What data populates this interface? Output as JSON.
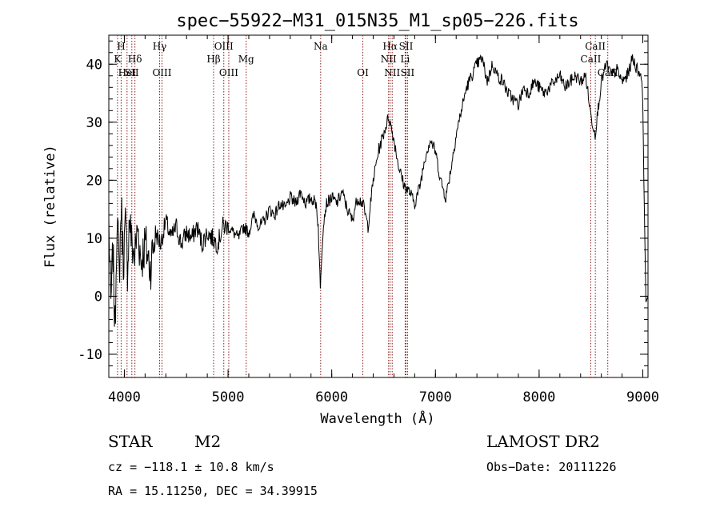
{
  "chart_data": {
    "type": "line",
    "title": "spec−55922−M31_015N35_M1_sp05−226.fits",
    "xlabel": "Wavelength (Å)",
    "ylabel": "Flux (relative)",
    "xlim": [
      3850,
      9050
    ],
    "ylim": [
      -14,
      45
    ],
    "xticks": [
      4000,
      5000,
      6000,
      7000,
      8000,
      9000
    ],
    "yticks": [
      -10,
      0,
      10,
      20,
      30,
      40
    ],
    "series_color": "#000000",
    "line_color": "#8b1a1a",
    "x": [
      3850,
      3870,
      3890,
      3910,
      3930,
      3950,
      3970,
      3990,
      4010,
      4030,
      4050,
      4070,
      4100,
      4130,
      4160,
      4200,
      4250,
      4300,
      4350,
      4400,
      4450,
      4500,
      4550,
      4600,
      4650,
      4700,
      4750,
      4800,
      4850,
      4900,
      4950,
      5000,
      5050,
      5100,
      5150,
      5200,
      5250,
      5300,
      5350,
      5400,
      5450,
      5500,
      5550,
      5600,
      5650,
      5700,
      5750,
      5800,
      5850,
      5870,
      5890,
      5900,
      5920,
      5950,
      6000,
      6050,
      6100,
      6150,
      6200,
      6220,
      6250,
      6300,
      6350,
      6400,
      6450,
      6500,
      6550,
      6600,
      6650,
      6700,
      6750,
      6800,
      6850,
      6900,
      6950,
      7000,
      7050,
      7100,
      7150,
      7200,
      7250,
      7300,
      7350,
      7400,
      7450,
      7500,
      7550,
      7600,
      7650,
      7700,
      7750,
      7800,
      7850,
      7900,
      7950,
      8000,
      8050,
      8100,
      8150,
      8200,
      8250,
      8300,
      8350,
      8400,
      8450,
      8500,
      8540,
      8600,
      8650,
      8700,
      8750,
      8800,
      8850,
      8900,
      8950,
      8990,
      9000,
      9010,
      9030,
      9050
    ],
    "y": [
      13,
      -2,
      8,
      -6,
      15,
      3,
      16,
      6,
      12,
      5,
      14,
      9,
      7,
      12,
      6,
      9,
      5,
      11,
      9,
      13,
      10,
      12,
      9,
      11,
      10,
      12,
      9,
      11,
      10,
      9,
      12,
      12,
      11,
      10,
      12,
      11,
      14,
      12,
      13,
      15,
      14,
      16,
      15,
      17,
      16,
      18,
      16,
      17,
      16,
      12,
      1,
      6,
      13,
      16,
      17,
      16,
      18,
      15,
      13,
      15,
      17,
      16,
      12,
      20,
      25,
      28,
      31,
      27,
      22,
      19,
      18,
      16,
      19,
      24,
      27,
      25,
      20,
      17,
      22,
      28,
      32,
      36,
      38,
      40,
      41,
      37,
      40,
      38,
      37,
      35,
      34,
      33,
      36,
      35,
      37,
      36,
      35,
      36,
      37,
      38,
      36,
      37,
      38,
      37,
      38,
      31,
      28,
      37,
      40,
      38,
      39,
      37,
      38,
      41,
      39,
      38,
      33,
      20,
      -1,
      0
    ],
    "lines": [
      {
        "name": "K",
        "x": 3934,
        "row": 1
      },
      {
        "name": "H",
        "x": 3969,
        "row": 0
      },
      {
        "name": "HeI",
        "x": 4026,
        "row": 2
      },
      {
        "name": "SII",
        "x": 4072,
        "row": 2
      },
      {
        "name": "Hδ",
        "x": 4102,
        "row": 1
      },
      {
        "name": "Hγ",
        "x": 4340,
        "row": 0
      },
      {
        "name": "OIII",
        "x": 4363,
        "row": 2
      },
      {
        "name": "Hβ",
        "x": 4861,
        "row": 1
      },
      {
        "name": "OIII",
        "x": 4959,
        "row": 0
      },
      {
        "name": "OIII",
        "x": 5007,
        "row": 2
      },
      {
        "name": "Mg",
        "x": 5175,
        "row": 1
      },
      {
        "name": "Na",
        "x": 5893,
        "row": 0
      },
      {
        "name": "OI",
        "x": 6300,
        "row": 2
      },
      {
        "name": "NII",
        "x": 6548,
        "row": 1
      },
      {
        "name": "Hα",
        "x": 6563,
        "row": 0
      },
      {
        "name": "NII",
        "x": 6583,
        "row": 2
      },
      {
        "name": "Li",
        "x": 6708,
        "row": 1
      },
      {
        "name": "SII",
        "x": 6716,
        "row": 0
      },
      {
        "name": "SII",
        "x": 6731,
        "row": 2
      },
      {
        "name": "CaII",
        "x": 8498,
        "row": 1
      },
      {
        "name": "CaII",
        "x": 8542,
        "row": 0
      },
      {
        "name": "CaII",
        "x": 8662,
        "row": 2
      }
    ]
  },
  "info": {
    "object_class": "STAR",
    "subclass": "M2",
    "survey": "LAMOST DR2",
    "cz": "cz = −118.1 ± 10.8 km/s",
    "obs_date": "Obs−Date: 20111226",
    "radec": "RA =  15.11250, DEC =  34.39915"
  }
}
